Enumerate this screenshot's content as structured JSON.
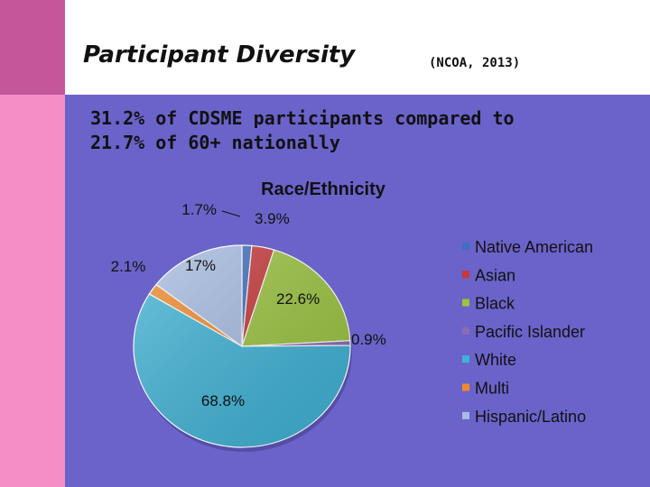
{
  "slide": {
    "title": "Participant Diversity",
    "source": "(NCOA, 2013)",
    "subtitle_line1": "31.2% of CDSME participants compared to",
    "subtitle_line2": "21.7% of 60+ nationally"
  },
  "colors": {
    "background": "#6a63c9",
    "left_strip": "#f58ec6",
    "left_strip_top": "#c4579a",
    "title_bar": "#ffffff"
  },
  "chart_data": {
    "type": "pie",
    "title": "Race/Ethnicity",
    "legend_position": "right",
    "slices": [
      {
        "name": "Native American",
        "value": 1.7,
        "label": "1.7%",
        "color": "#3f6fbf"
      },
      {
        "name": "Asian",
        "value": 3.9,
        "label": "3.9%",
        "color": "#c7383a"
      },
      {
        "name": "Black",
        "value": 22.6,
        "label": "22.6%",
        "color": "#9bc43f"
      },
      {
        "name": "Pacific Islander",
        "value": 0.9,
        "label": "0.9%",
        "color": "#8a6bb5"
      },
      {
        "name": "White",
        "value": 68.8,
        "label": "68.8%",
        "color": "#3fb3d6"
      },
      {
        "name": "Multi",
        "value": 2.1,
        "label": "2.1%",
        "color": "#f08a2c"
      },
      {
        "name": "Hispanic/Latino",
        "value": 17,
        "label": "17%",
        "color": "#a7bde3"
      }
    ]
  }
}
